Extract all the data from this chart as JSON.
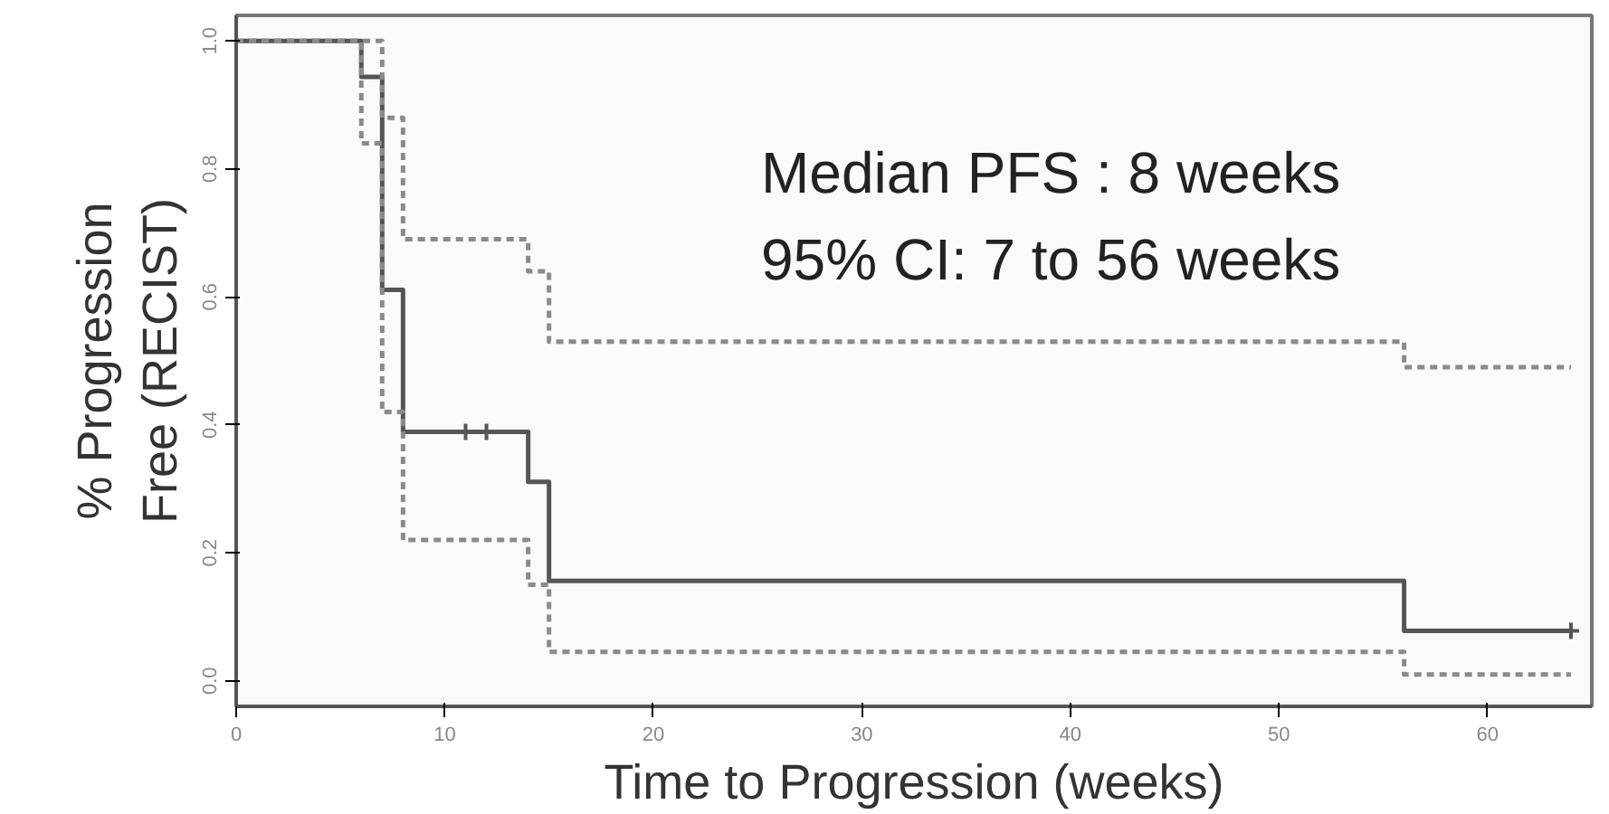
{
  "chart_data": {
    "type": "step",
    "xlabel": "Time to Progression (weeks)",
    "ylabel": "% Progression\nFree (RECIST)",
    "annotations": [
      "Median PFS : 8 weeks",
      "95% CI: 7 to 56 weeks"
    ],
    "xlim": [
      0,
      65
    ],
    "ylim": [
      -0.04,
      1.04
    ],
    "xticks": [
      0,
      10,
      20,
      30,
      40,
      50,
      60
    ],
    "yticks": [
      {
        "value": 0,
        "label": "0.0"
      },
      {
        "value": 0.2,
        "label": "0.2"
      },
      {
        "value": 0.4,
        "label": "0.4"
      },
      {
        "value": 0.6,
        "label": "0.6"
      },
      {
        "value": 0.8,
        "label": "0.8"
      },
      {
        "value": 1,
        "label": "1.0"
      }
    ],
    "grid": false,
    "series": [
      {
        "color": "#555555",
        "line_style": "solid",
        "x": [
          0,
          6,
          7,
          8,
          14,
          15,
          56,
          64
        ],
        "values": [
          1,
          0.944,
          0.611,
          0.389,
          0.311,
          0.156,
          0.078,
          0.078
        ]
      },
      {
        "color": "#8a8a8a",
        "line_style": "dotted",
        "x": [
          0,
          7,
          8,
          14,
          15,
          56,
          64
        ],
        "values": [
          1,
          0.88,
          0.69,
          0.64,
          0.53,
          0.49,
          0.49
        ]
      },
      {
        "color": "#8a8a8a",
        "line_style": "dotted",
        "x": [
          0,
          6,
          7,
          8,
          14,
          15,
          56,
          64
        ],
        "values": [
          1,
          0.84,
          0.42,
          0.22,
          0.15,
          0.045,
          0.01,
          0.01
        ]
      },
      {
        "type": "scatter",
        "color": "#555555",
        "marker": "cross",
        "x": [
          11,
          12,
          64
        ],
        "values": [
          0.389,
          0.389,
          0.078
        ]
      }
    ]
  }
}
